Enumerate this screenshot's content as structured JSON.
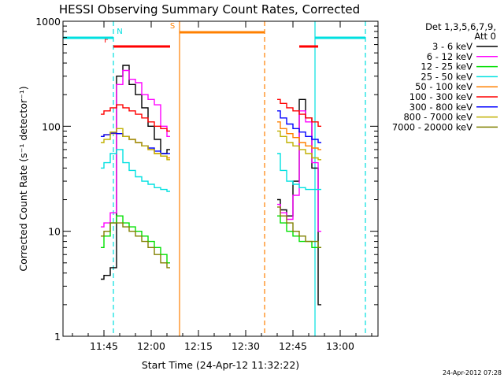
{
  "chart_data": {
    "type": "line",
    "title": "HESSI Observing Summary Count Rates, Corrected",
    "xlabel": "Start Time (24-Apr-12 11:32:22)",
    "ylabel": "Corrected Count Rate (s⁻¹ detector⁻¹)",
    "y_scale": "log",
    "ylim": [
      1,
      1000
    ],
    "xlim": [
      "11:32",
      "13:12"
    ],
    "x_ticks": [
      "11:45",
      "12:00",
      "12:15",
      "12:30",
      "12:45",
      "13:00"
    ],
    "y_ticks": [
      "1",
      "10",
      "100",
      "1000"
    ],
    "legend_title": [
      "Det 1,3,5,6,7,9,",
      "Att 0"
    ],
    "legend_position": "right",
    "timestamp": "24-Apr-2012 07:28",
    "flags": [
      {
        "label": "F",
        "color": "#ff0000",
        "segments": [
          [
            "11:48",
            "12:06"
          ],
          [
            "12:47",
            "12:53"
          ]
        ]
      },
      {
        "label": "N",
        "color": "#00e0e0",
        "segments": [
          [
            "11:32",
            "11:48"
          ],
          [
            "12:52",
            "13:08"
          ]
        ]
      },
      {
        "label": "S",
        "color": "#ff8000",
        "segments": [
          [
            "12:09",
            "12:36"
          ]
        ]
      }
    ],
    "vlines": [
      {
        "time": "11:48",
        "color": "#00e0e0",
        "style": "dashed"
      },
      {
        "time": "12:09",
        "color": "#ff8000",
        "style": "solid"
      },
      {
        "time": "12:36",
        "color": "#ff8000",
        "style": "dashed"
      },
      {
        "time": "12:52",
        "color": "#00e0e0",
        "style": "solid"
      },
      {
        "time": "13:08",
        "color": "#00e0e0",
        "style": "dashed"
      }
    ],
    "x": [
      "11:44",
      "11:46",
      "11:48",
      "11:50",
      "11:52",
      "11:54",
      "11:56",
      "11:58",
      "12:00",
      "12:02",
      "12:04",
      "12:06",
      "12:40",
      "12:42",
      "12:44",
      "12:46",
      "12:48",
      "12:50",
      "12:52",
      "12:54"
    ],
    "series": [
      {
        "name": "3 - 6 keV",
        "color": "#000000",
        "values": [
          3.5,
          3.8,
          4.5,
          300,
          380,
          250,
          200,
          150,
          100,
          75,
          55,
          60,
          20,
          16,
          14,
          30,
          180,
          120,
          40,
          2
        ]
      },
      {
        "name": "6 - 12 keV",
        "color": "#ff00ff",
        "values": [
          11,
          12,
          15,
          250,
          340,
          280,
          260,
          200,
          180,
          160,
          100,
          80,
          18,
          15,
          13,
          22,
          140,
          110,
          45,
          10
        ]
      },
      {
        "name": "12 - 25 keV",
        "color": "#00e000",
        "values": [
          7,
          9,
          12,
          14,
          12,
          11,
          10,
          9,
          8,
          7,
          6,
          5,
          14,
          12,
          10,
          9,
          8,
          8,
          7,
          7
        ]
      },
      {
        "name": "25 - 50 keV",
        "color": "#00e0e0",
        "values": [
          40,
          45,
          55,
          60,
          45,
          38,
          33,
          30,
          28,
          26,
          25,
          24,
          55,
          38,
          30,
          28,
          26,
          25,
          25,
          25
        ]
      },
      {
        "name": "50 - 100 keV",
        "color": "#ff8000",
        "values": [
          80,
          83,
          85,
          85,
          80,
          75,
          70,
          65,
          60,
          55,
          52,
          50,
          110,
          95,
          85,
          78,
          70,
          65,
          62,
          60
        ]
      },
      {
        "name": "100 - 300 keV",
        "color": "#ff0000",
        "values": [
          130,
          140,
          150,
          160,
          150,
          140,
          130,
          120,
          110,
          100,
          95,
          90,
          180,
          165,
          150,
          140,
          130,
          120,
          110,
          100
        ]
      },
      {
        "name": "300 - 800 keV",
        "color": "#0000ff",
        "values": [
          80,
          83,
          86,
          85,
          80,
          75,
          70,
          65,
          62,
          58,
          55,
          55,
          140,
          120,
          105,
          95,
          88,
          80,
          75,
          70
        ]
      },
      {
        "name": "800 - 7000 keV",
        "color": "#c0b000",
        "values": [
          70,
          75,
          88,
          95,
          80,
          75,
          70,
          65,
          60,
          55,
          52,
          48,
          90,
          80,
          70,
          65,
          60,
          55,
          50,
          48
        ]
      },
      {
        "name": "7000 - 20000 keV",
        "color": "#808000",
        "values": [
          9,
          10,
          12,
          12,
          11,
          10,
          9,
          8,
          7,
          6,
          5,
          4.5,
          17,
          14,
          12,
          10,
          9,
          8,
          8,
          7
        ]
      }
    ]
  }
}
